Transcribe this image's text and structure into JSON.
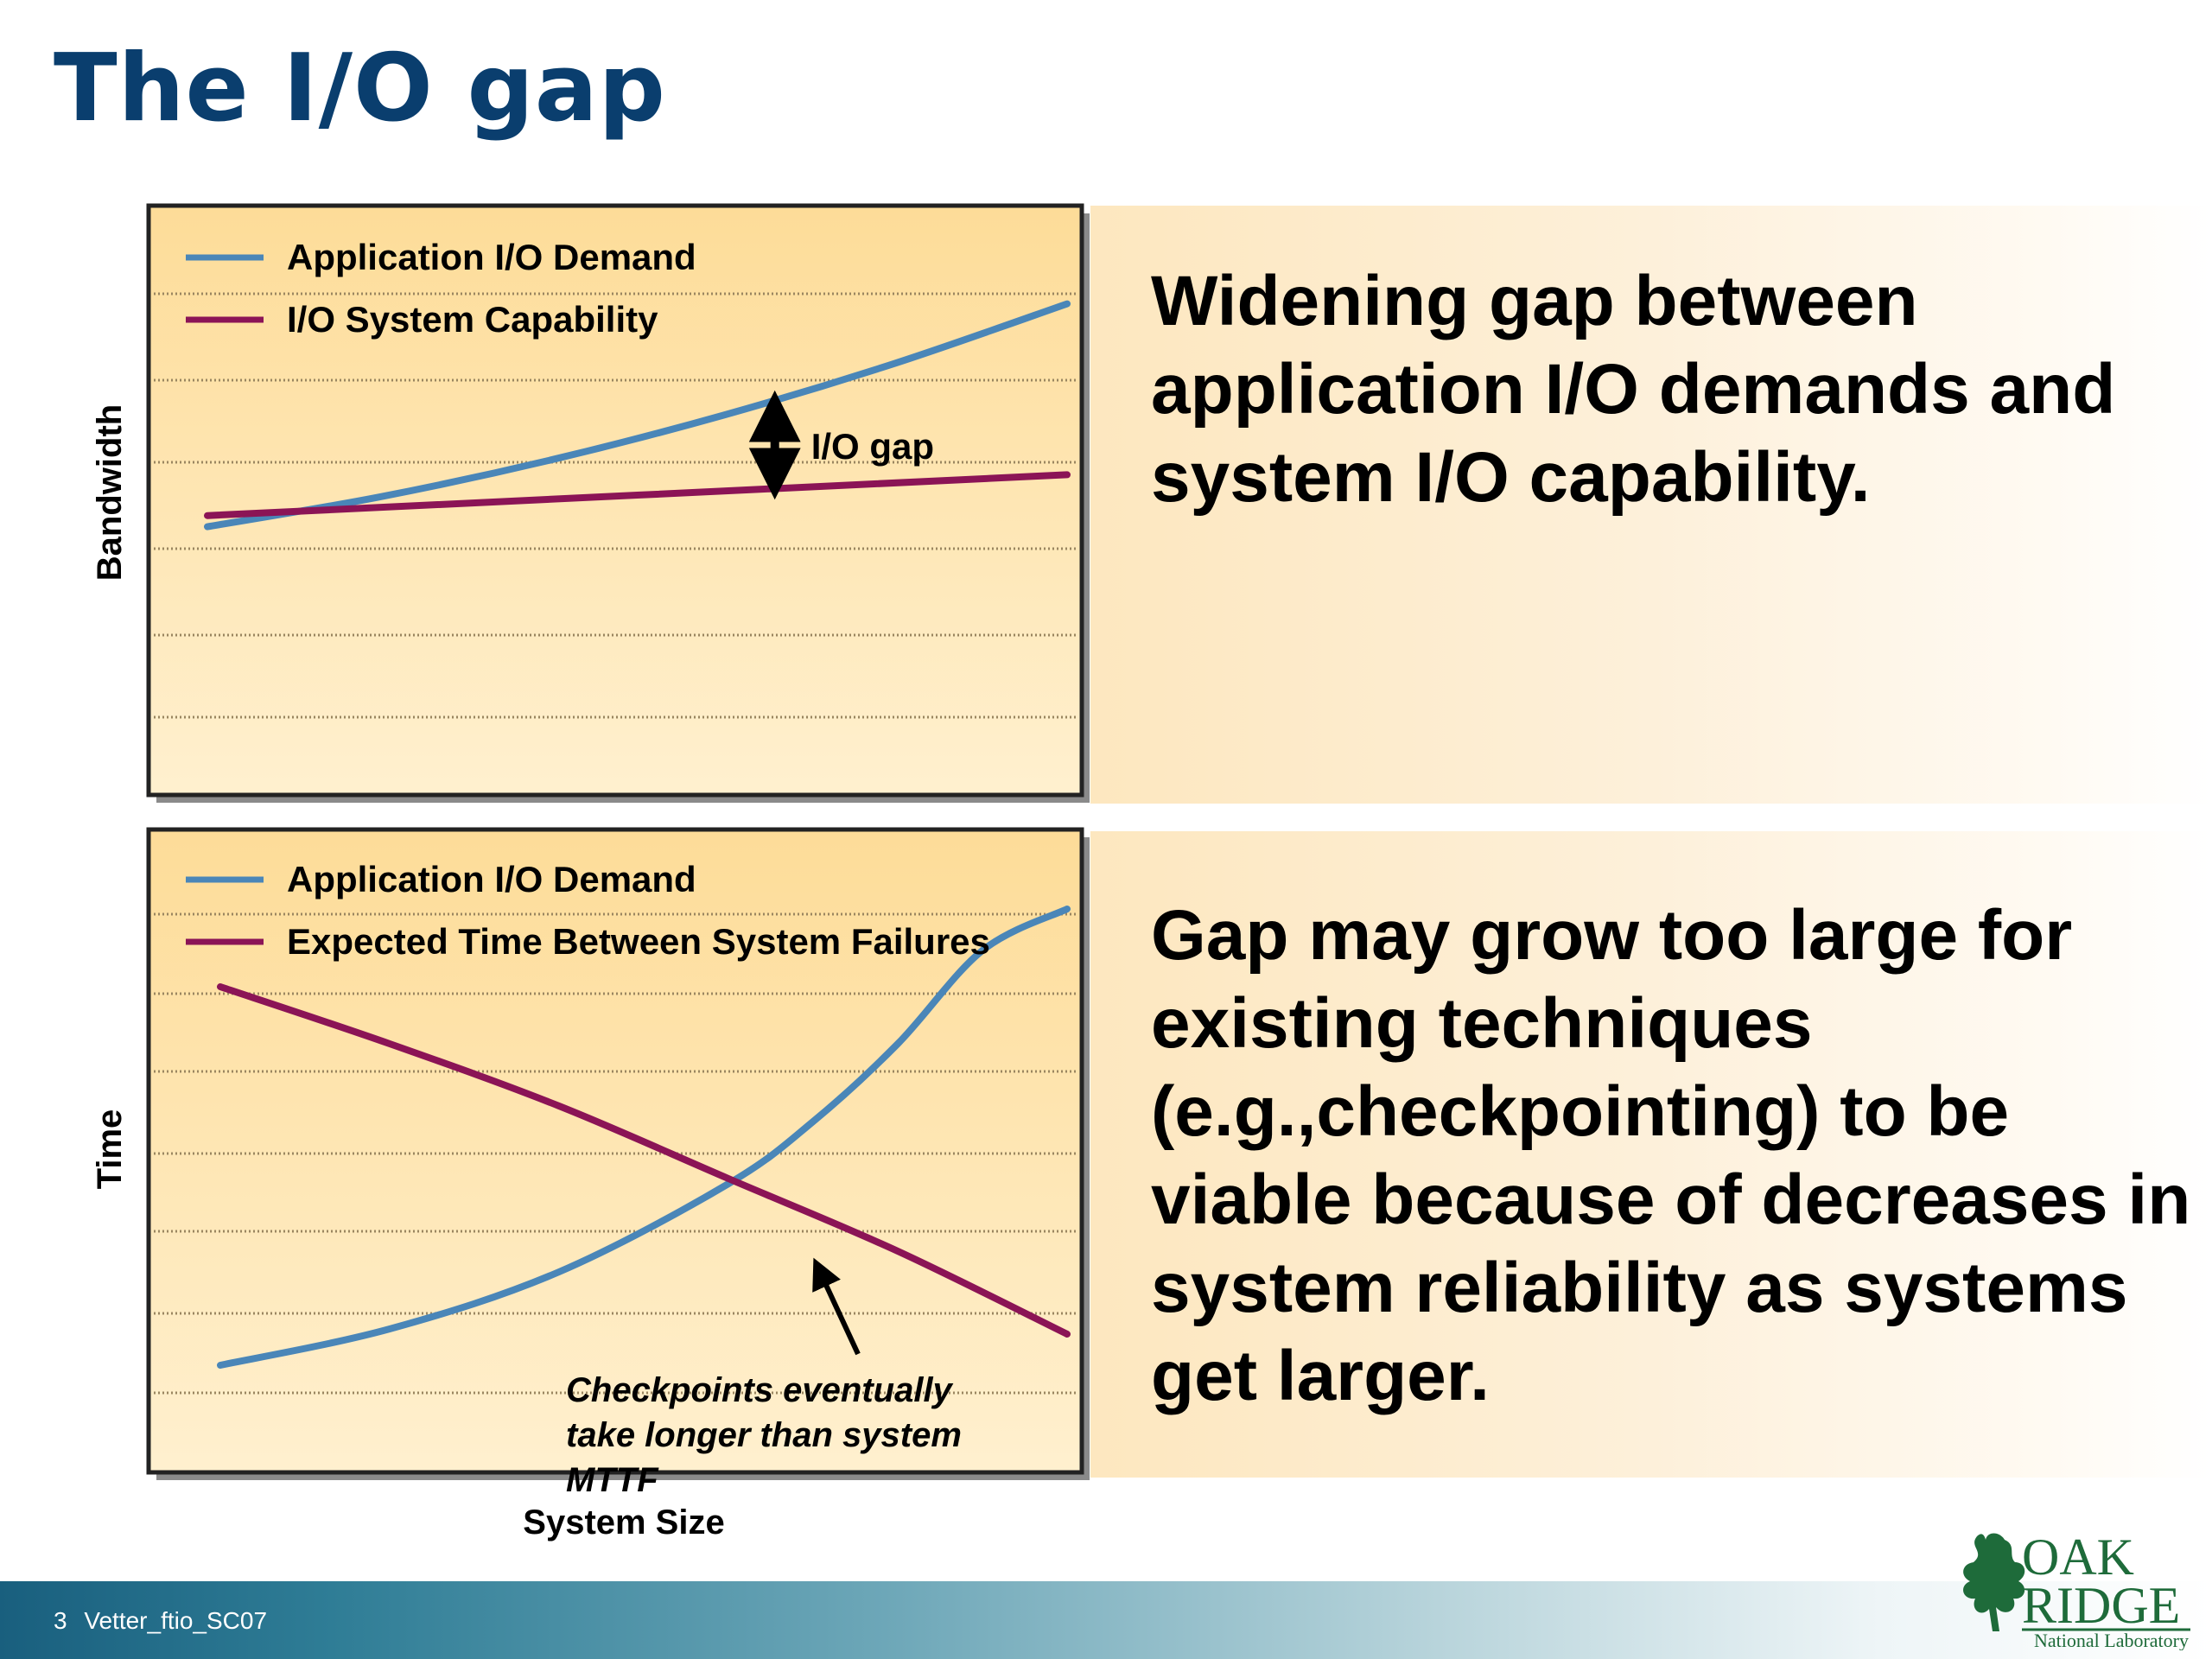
{
  "slide": {
    "title": "The I/O gap",
    "footer_text": "3 Vetter_ftio_SC07",
    "text_top": "Widening gap between application I/O demands and system I/O capability.",
    "text_bottom": "Gap may grow too large for existing techniques (e.g.,checkpointing) to be viable because of decreases in system reliability as systems get larger.",
    "logo": {
      "line1": "OAK",
      "line2": "RIDGE",
      "line3": "National Laboratory",
      "icon": "oak-leaf-icon"
    }
  },
  "colors": {
    "title": "#0a3e6e",
    "demand": "#4a86b8",
    "capability": "#8b1456",
    "panel_top": "#fddc98",
    "panel_bottom": "#fff0cf",
    "logo": "#1e6b3a"
  },
  "chart_data": [
    {
      "type": "line",
      "title": "",
      "xlabel": "",
      "ylabel": "Bandwidth",
      "xlim": [
        0,
        10
      ],
      "ylim": [
        0,
        10
      ],
      "grid": true,
      "legend_position": "top-left",
      "series": [
        {
          "name": "Application I/O Demand",
          "color": "#4a86b8",
          "x": [
            0,
            2,
            4,
            6,
            8,
            10
          ],
          "y": [
            2.8,
            3.6,
            4.6,
            5.8,
            7.2,
            8.8
          ]
        },
        {
          "name": "I/O System Capability",
          "color": "#8b1456",
          "x": [
            0,
            10
          ],
          "y": [
            3.1,
            4.2
          ]
        }
      ],
      "annotations": [
        {
          "text": "I/O gap",
          "x": 6.6,
          "y_from": 3.9,
          "y_to": 6.1
        }
      ]
    },
    {
      "type": "line",
      "title": "",
      "xlabel": "System Size",
      "ylabel": "Time",
      "xlim": [
        0,
        10
      ],
      "ylim": [
        0,
        10
      ],
      "grid": true,
      "legend_position": "top-left",
      "series": [
        {
          "name": "Application I/O Demand",
          "color": "#4a86b8",
          "x": [
            0,
            2,
            4,
            6,
            7,
            8,
            9,
            10
          ],
          "y": [
            1.0,
            1.7,
            2.8,
            4.5,
            5.7,
            7.2,
            9.0,
            9.8
          ]
        },
        {
          "name": "Expected Time Between System Failures",
          "color": "#8b1456",
          "x": [
            0,
            2,
            4,
            6,
            8,
            10
          ],
          "y": [
            8.3,
            7.2,
            6.0,
            4.6,
            3.2,
            1.6
          ]
        }
      ],
      "annotations": [
        {
          "text": "Checkpoints eventually take longer than system MTTF",
          "x": 7.0,
          "y": 3.3
        }
      ]
    }
  ]
}
